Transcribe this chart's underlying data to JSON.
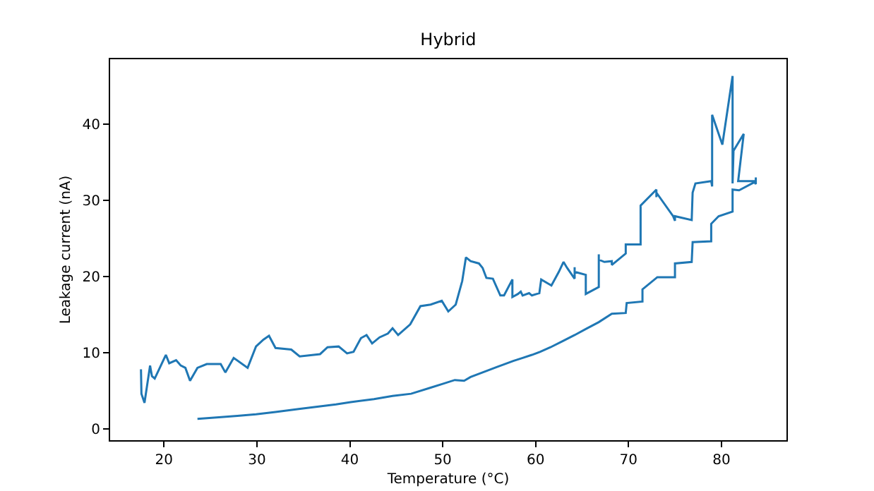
{
  "chart_data": {
    "type": "line",
    "title": "Hybrid",
    "xlabel": "Temperature (°C)",
    "ylabel": "Leakage current (nA)",
    "series": [
      {
        "color": "#1f77b4",
        "x": [
          17.52,
          17.57,
          17.9,
          18.5,
          18.7,
          19.0,
          20.2,
          20.56,
          21.3,
          21.8,
          22.3,
          22.8,
          23.6,
          24.6,
          26.1,
          26.6,
          27.5,
          29.0,
          29.9,
          30.7,
          31.3,
          32.0,
          33.7,
          34.6,
          36.8,
          37.6,
          38.8,
          39.7,
          40.4,
          41.2,
          41.8,
          42.4,
          43.2,
          44.1,
          44.6,
          45.2,
          46.5,
          47.6,
          48.7,
          49.9,
          50.6,
          51.4,
          52.1,
          52.5,
          53.0,
          53.9,
          54.3,
          54.7,
          55.4,
          56.2,
          56.6,
          57.5,
          57.5,
          58.1,
          58.4,
          58.6,
          59.3,
          59.6,
          60.4,
          60.6,
          61.7,
          62.5,
          63.0,
          63.4,
          64.2,
          64.2,
          64.2,
          65.4,
          65.4,
          66.8,
          66.8,
          66.8,
          67.4,
          68.2,
          68.2,
          69.7,
          69.7,
          71.3,
          71.3,
          73.0,
          73.0,
          73.0,
          74.8,
          75.0,
          75.0,
          76.8,
          76.9,
          77.2,
          78.9,
          79.0,
          79.0,
          80.1,
          81.2,
          81.2,
          81.3,
          82.4,
          81.8,
          83.7,
          83.7,
          83.7,
          83.6,
          81.9,
          81.2,
          81.2,
          79.7,
          78.9,
          78.9,
          76.9,
          76.8,
          75.0,
          75.0,
          73.1,
          71.5,
          71.5,
          69.8,
          69.7,
          68.2,
          66.8,
          65.4,
          64.2,
          62.9,
          61.6,
          60.5,
          59.6,
          58.6,
          57.6,
          55.8,
          54.3,
          53.0,
          52.3,
          51.3,
          50.0,
          48.7,
          46.6,
          44.6,
          42.6,
          40.1,
          38.5,
          36.5,
          34.5,
          32.0,
          29.9,
          27.9,
          25.9,
          23.6
        ],
        "values": [
          7.8,
          4.6,
          3.4,
          8.3,
          6.9,
          6.6,
          9.7,
          8.6,
          9.0,
          8.3,
          8.0,
          6.3,
          8.0,
          8.5,
          8.5,
          7.4,
          9.3,
          8.0,
          10.8,
          11.7,
          12.2,
          10.6,
          10.4,
          9.5,
          9.8,
          10.7,
          10.8,
          9.9,
          10.1,
          11.9,
          12.3,
          11.2,
          12.0,
          12.5,
          13.2,
          12.3,
          13.7,
          16.1,
          16.3,
          16.8,
          15.4,
          16.3,
          19.4,
          22.5,
          22.0,
          21.7,
          21.1,
          19.8,
          19.7,
          17.5,
          17.5,
          19.6,
          17.3,
          17.7,
          18.0,
          17.5,
          17.8,
          17.5,
          17.8,
          19.6,
          18.8,
          20.6,
          21.9,
          21.1,
          19.7,
          21.2,
          20.6,
          20.2,
          17.7,
          18.6,
          22.9,
          22.2,
          21.9,
          22.0,
          21.5,
          23.0,
          24.2,
          24.2,
          29.3,
          31.4,
          30.4,
          31.0,
          27.9,
          27.3,
          27.9,
          27.4,
          31.0,
          32.2,
          32.5,
          31.8,
          41.2,
          37.3,
          46.3,
          32.2,
          36.5,
          38.7,
          32.5,
          32.5,
          33.0,
          32.1,
          32.4,
          31.3,
          31.4,
          28.5,
          27.9,
          26.9,
          24.6,
          24.5,
          21.9,
          21.7,
          19.9,
          19.9,
          18.3,
          16.7,
          16.5,
          15.2,
          15.1,
          14.0,
          13.1,
          12.3,
          11.5,
          10.7,
          10.1,
          9.7,
          9.3,
          8.9,
          8.1,
          7.4,
          6.8,
          6.3,
          6.4,
          5.9,
          5.4,
          4.6,
          4.3,
          3.9,
          3.5,
          3.2,
          2.9,
          2.6,
          2.2,
          1.9,
          1.7,
          1.5,
          1.3
        ]
      }
    ],
    "xlim": [
      14.2,
      87.0
    ],
    "ylim": [
      -1.5,
      48.5
    ],
    "xticks": [
      20,
      30,
      40,
      50,
      60,
      70,
      80
    ],
    "yticks": [
      0,
      10,
      20,
      30,
      40
    ],
    "marker": "none",
    "line_style": "solid"
  }
}
